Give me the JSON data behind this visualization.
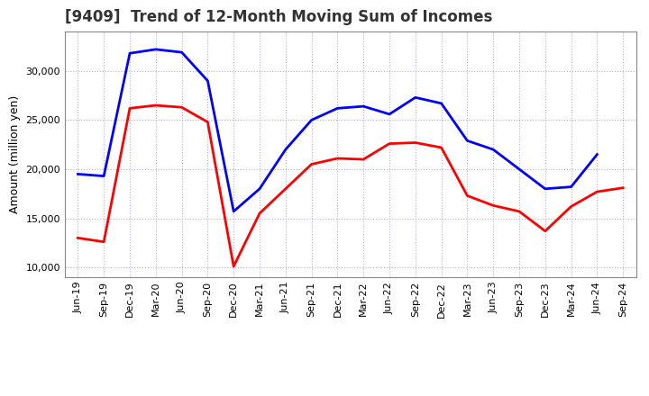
{
  "title": "[9409]  Trend of 12-Month Moving Sum of Incomes",
  "ylabel": "Amount (million yen)",
  "ylim": [
    9000,
    34000
  ],
  "yticks": [
    10000,
    15000,
    20000,
    25000,
    30000
  ],
  "x_labels": [
    "Jun-19",
    "Sep-19",
    "Dec-19",
    "Mar-20",
    "Jun-20",
    "Sep-20",
    "Dec-20",
    "Mar-21",
    "Jun-21",
    "Sep-21",
    "Dec-21",
    "Mar-22",
    "Jun-22",
    "Sep-22",
    "Dec-22",
    "Mar-23",
    "Jun-23",
    "Sep-23",
    "Dec-23",
    "Mar-24",
    "Jun-24",
    "Sep-24"
  ],
  "ordinary_income": [
    19500,
    19300,
    31800,
    32200,
    31900,
    29000,
    15700,
    18000,
    22000,
    25000,
    26200,
    26400,
    25600,
    27300,
    26700,
    22900,
    22000,
    20000,
    18000,
    18200,
    21500,
    null
  ],
  "net_income": [
    13000,
    12600,
    26200,
    26500,
    26300,
    24800,
    10100,
    15500,
    18000,
    20500,
    21100,
    21000,
    22600,
    22700,
    22200,
    17300,
    16300,
    15700,
    13700,
    16200,
    17700,
    18100
  ],
  "ordinary_color": "#0000ff",
  "net_color": "#ff0000",
  "line_width": 2.0,
  "background_color": "#ffffff",
  "grid_color": "#aaaacc",
  "title_fontsize": 12,
  "axis_fontsize": 9,
  "tick_fontsize": 8,
  "legend_fontsize": 9.5
}
